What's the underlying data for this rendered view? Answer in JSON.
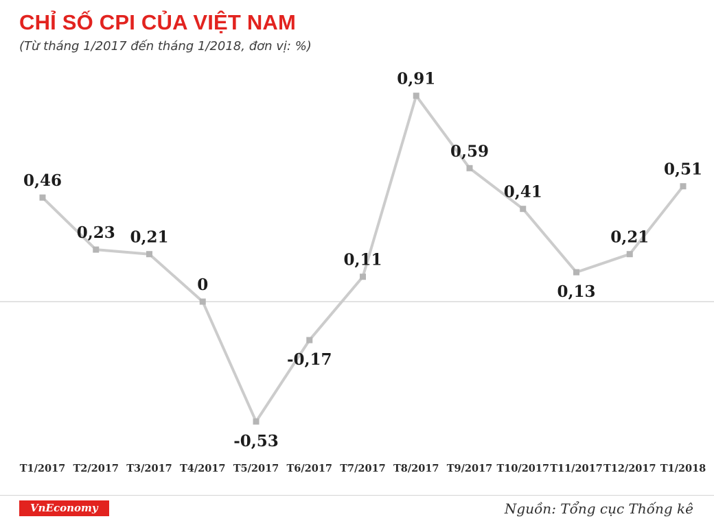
{
  "header": {
    "title": "CHỈ SỐ CPI CỦA VIỆT NAM",
    "subtitle": "(Từ tháng 1/2017 đến tháng 1/2018, đơn vị: %)"
  },
  "chart_data": {
    "type": "line",
    "title": "CHỈ SỐ CPI CỦA VIỆT NAM",
    "subtitle": "(Từ tháng 1/2017 đến tháng 1/2018, đơn vị: %)",
    "unit": "%",
    "categories": [
      "T1/2017",
      "T2/2017",
      "T3/2017",
      "T4/2017",
      "T5/2017",
      "T6/2017",
      "T7/2017",
      "T8/2017",
      "T9/2017",
      "T10/2017",
      "T11/2017",
      "T12/2017",
      "T1/2018"
    ],
    "values": [
      0.46,
      0.23,
      0.21,
      0,
      -0.53,
      -0.17,
      0.11,
      0.91,
      0.59,
      0.41,
      0.13,
      0.21,
      0.51
    ],
    "value_labels": [
      "0,46",
      "0,23",
      "0,21",
      "0",
      "-0,53",
      "-0,17",
      "0,11",
      "0,91",
      "0,59",
      "0,41",
      "0,13",
      "0,21",
      "0,51"
    ],
    "label_positions": [
      "above",
      "above",
      "above",
      "above",
      "below",
      "below",
      "above",
      "above",
      "above",
      "above",
      "below",
      "above",
      "above"
    ],
    "ylim": [
      -0.7,
      1.05
    ],
    "grid": "zero-line-only",
    "legend": "none",
    "line_color": "#cccccc",
    "marker_color": "#b5b5b5",
    "zero_line_color": "#d8d8d8",
    "label_color": "#1c1c1c"
  },
  "footer": {
    "logo_text": "VnEconomy",
    "source": "Nguồn: Tổng cục Thống kê"
  },
  "colors": {
    "title_red": "#e2231f",
    "logo_bg": "#e2231f"
  }
}
